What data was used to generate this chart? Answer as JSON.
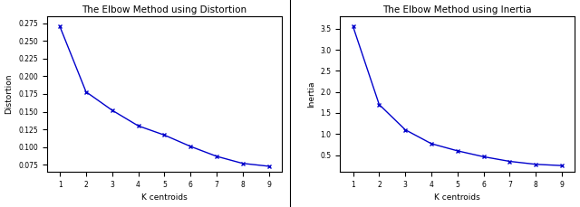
{
  "k_values": [
    1,
    2,
    3,
    4,
    5,
    6,
    7,
    8,
    9
  ],
  "distortion": [
    0.27,
    0.178,
    0.152,
    0.13,
    0.117,
    0.101,
    0.087,
    0.077,
    0.073
  ],
  "inertia": [
    3.55,
    1.7,
    1.1,
    0.77,
    0.6,
    0.46,
    0.35,
    0.28,
    0.25
  ],
  "title1": "The Elbow Method using Distortion",
  "title2": "The Elbow Method using Inertia",
  "xlabel": "K centroids",
  "ylabel1": "Distortion",
  "ylabel2": "Inertia",
  "line_color": "#0000cc",
  "marker": "x",
  "bg_color": "#ffffff",
  "distortion_yticks": [
    0.075,
    0.1,
    0.125,
    0.15,
    0.175,
    0.2,
    0.225,
    0.25,
    0.275
  ],
  "inertia_yticks": [
    0.5,
    1.0,
    1.5,
    2.0,
    2.5,
    3.0,
    3.5
  ]
}
